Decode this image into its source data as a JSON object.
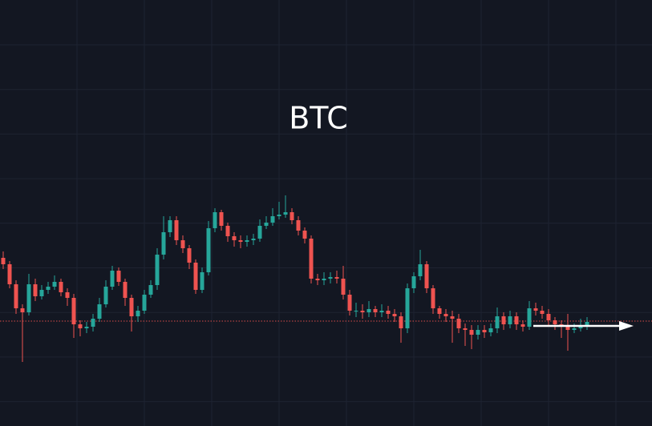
{
  "chart_data": {
    "type": "candlestick",
    "title": "BTC",
    "ylim": [
      0,
      532
    ],
    "grid": true,
    "up_color": "#26a69a",
    "down_color": "#ef5350",
    "price_line": {
      "value": 131,
      "color": "#ef5350"
    },
    "open": [
      210,
      202,
      177,
      147,
      142,
      177,
      162,
      170,
      174,
      180,
      167,
      160,
      127,
      122,
      124,
      134,
      152,
      174,
      194,
      180,
      160,
      137,
      144,
      164,
      176,
      214,
      242,
      257,
      232,
      222,
      204,
      170,
      192,
      247,
      267,
      250,
      237,
      232,
      230,
      232,
      234,
      250,
      254,
      262,
      264,
      267,
      257,
      244,
      234,
      184,
      182,
      184,
      186,
      184,
      164,
      144,
      144,
      142,
      146,
      142,
      144,
      140,
      137,
      122,
      172,
      187,
      202,
      172,
      147,
      140,
      137,
      134,
      122,
      120,
      114,
      120,
      117,
      122,
      137,
      127,
      137,
      127,
      124,
      147,
      144,
      140,
      132,
      127,
      125,
      120,
      122,
      124
    ],
    "high": [
      218,
      206,
      182,
      152,
      190,
      184,
      176,
      180,
      188,
      184,
      172,
      165,
      132,
      130,
      140,
      160,
      182,
      200,
      198,
      184,
      164,
      150,
      170,
      182,
      222,
      262,
      262,
      262,
      238,
      226,
      208,
      198,
      256,
      272,
      270,
      254,
      242,
      238,
      238,
      240,
      258,
      262,
      272,
      280,
      288,
      272,
      262,
      248,
      238,
      190,
      192,
      192,
      194,
      200,
      170,
      154,
      152,
      156,
      150,
      152,
      150,
      146,
      142,
      178,
      192,
      220,
      206,
      176,
      150,
      146,
      144,
      140,
      128,
      126,
      126,
      126,
      128,
      148,
      142,
      144,
      142,
      132,
      156,
      154,
      150,
      146,
      136,
      132,
      140,
      128,
      134,
      136
    ],
    "low": [
      196,
      172,
      140,
      80,
      138,
      156,
      158,
      165,
      170,
      162,
      150,
      110,
      112,
      116,
      118,
      130,
      148,
      170,
      175,
      150,
      118,
      130,
      140,
      160,
      170,
      208,
      236,
      226,
      216,
      196,
      165,
      166,
      188,
      242,
      244,
      230,
      224,
      222,
      224,
      226,
      230,
      246,
      250,
      258,
      260,
      252,
      238,
      228,
      178,
      176,
      176,
      178,
      178,
      158,
      138,
      136,
      134,
      136,
      136,
      136,
      134,
      130,
      104,
      116,
      166,
      182,
      166,
      140,
      134,
      130,
      104,
      116,
      100,
      96,
      108,
      110,
      112,
      116,
      120,
      122,
      120,
      118,
      120,
      138,
      134,
      126,
      120,
      110,
      94,
      116,
      118,
      120
    ],
    "close": [
      202,
      177,
      147,
      142,
      177,
      162,
      170,
      174,
      180,
      167,
      160,
      127,
      122,
      124,
      134,
      152,
      174,
      194,
      180,
      160,
      137,
      144,
      164,
      176,
      214,
      242,
      257,
      232,
      222,
      204,
      170,
      192,
      247,
      267,
      250,
      237,
      232,
      230,
      232,
      234,
      250,
      254,
      262,
      264,
      267,
      257,
      244,
      234,
      184,
      182,
      184,
      186,
      184,
      164,
      144,
      144,
      142,
      146,
      142,
      144,
      140,
      137,
      122,
      172,
      187,
      202,
      172,
      147,
      140,
      137,
      134,
      122,
      120,
      114,
      120,
      117,
      122,
      137,
      127,
      137,
      127,
      124,
      147,
      144,
      140,
      132,
      127,
      125,
      120,
      122,
      124,
      130
    ]
  }
}
